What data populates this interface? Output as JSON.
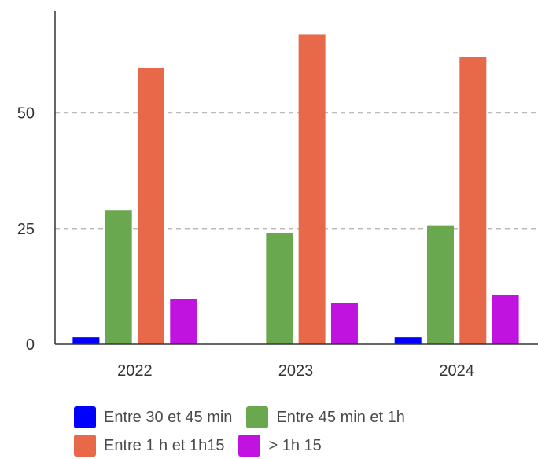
{
  "chart_data": {
    "type": "bar",
    "categories": [
      "2022",
      "2023",
      "2024"
    ],
    "series": [
      {
        "name": "Entre 30 et 45 min",
        "color": "#0000ff",
        "values": [
          1.5,
          0,
          1.5
        ]
      },
      {
        "name": "Entre 45 min et 1h",
        "color": "#6aa84f",
        "values": [
          29,
          24,
          25.7
        ]
      },
      {
        "name": "Entre 1 h et 1h15",
        "color": "#e8694a",
        "values": [
          59.7,
          67,
          62
        ]
      },
      {
        "name": "> 1h 15",
        "color": "#c013e0",
        "values": [
          9.8,
          9,
          10.7
        ]
      }
    ],
    "y_ticks": [
      "0",
      "25",
      "50"
    ],
    "ylim": [
      0,
      72
    ],
    "grid": true,
    "legend_position": "bottom"
  }
}
